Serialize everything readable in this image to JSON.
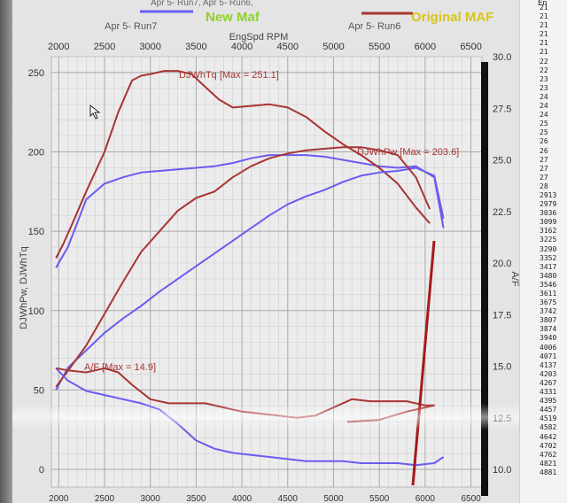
{
  "legend": {
    "run7": "Apr 5- Run7",
    "run6": "Apr 5- Run6",
    "top_clipped": "Apr 5- Run7, Apr 5- Run6,",
    "new_label": "New Maf",
    "orig_label": "Original MAF"
  },
  "colors": {
    "run7": "#6a5cf0",
    "run6": "#a83434",
    "new_label": "#8fd12a",
    "orig_label": "#d8c51a",
    "vertical_marker": "#a41a1a"
  },
  "axes": {
    "x_label": "EngSpd RPM",
    "left_label": "DJWhPw, DJWhTq",
    "right_label": "A/F",
    "x_ticks": [
      "2000",
      "2500",
      "3000",
      "3500",
      "4000",
      "4500",
      "5000",
      "5500",
      "6000",
      "6500"
    ],
    "left_ticks": [
      "0",
      "50",
      "100",
      "150",
      "200",
      "250"
    ],
    "right_ticks": [
      "10.0",
      "12.5",
      "15.0",
      "17.5",
      "20.0",
      "22.5",
      "25.0",
      "27.5",
      "30.0"
    ]
  },
  "annotations": {
    "tq_max": "DJWhTq [Max = 251.1]",
    "pw_max": "DJWhPw [Max = 203.6]",
    "af_max": "A/F  [Max = 14.9]"
  },
  "side_list": {
    "header": "En",
    "values": [
      "21",
      "21",
      "21",
      "21",
      "21",
      "21",
      "22",
      "22",
      "23",
      "23",
      "24",
      "24",
      "24",
      "25",
      "25",
      "26",
      "26",
      "27",
      "27",
      "27",
      "28",
      "2913",
      "2979",
      "3036",
      "3099",
      "3162",
      "3225",
      "3290",
      "3352",
      "3417",
      "3480",
      "3546",
      "3611",
      "3675",
      "3742",
      "3807",
      "3874",
      "3940",
      "4006",
      "4071",
      "4137",
      "4203",
      "4267",
      "4331",
      "4395",
      "4457",
      "4519",
      "4582",
      "4642",
      "4702",
      "4762",
      "4821",
      "4881"
    ]
  },
  "chart_data": {
    "type": "line",
    "xlabel": "EngSpd RPM",
    "xlim": [
      1920,
      6620
    ],
    "ylim_left": [
      0,
      260
    ],
    "ylim_right": [
      10.0,
      30.0
    ],
    "series": [
      {
        "name": "Apr 5- Run7",
        "axis": "left",
        "x": [
          1970,
          2050,
          2100,
          2200,
          2300,
          2500,
          2700,
          2900,
          3100,
          3300,
          3500,
          3700,
          3900,
          4100,
          4300,
          4500,
          4700,
          4900,
          5100,
          5300,
          5500,
          5700,
          5900,
          6100,
          6200
        ],
        "values": [
          127,
          135,
          140,
          155,
          170,
          180,
          184,
          187,
          188,
          189,
          190,
          191,
          193,
          196,
          198,
          198,
          198,
          197,
          195,
          193,
          191,
          190,
          191,
          184,
          152
        ]
      },
      {
        "name": "Apr 5- Run6",
        "axis": "left",
        "x": [
          1970,
          2050,
          2150,
          2300,
          2500,
          2650,
          2800,
          2900,
          3000,
          3150,
          3300,
          3450,
          3600,
          3750,
          3900,
          4100,
          4300,
          4500,
          4700,
          4900,
          5100,
          5300,
          5500,
          5700,
          5900,
          6050
        ],
        "values": [
          133,
          142,
          155,
          175,
          200,
          225,
          245,
          248,
          249,
          251,
          251,
          249,
          241,
          233,
          228,
          229,
          230,
          228,
          222,
          213,
          205,
          198,
          190,
          180,
          165,
          155
        ]
      },
      {
        "name": "Apr 5- Run7 DJWhPw",
        "axis": "left",
        "x": [
          1970,
          2100,
          2300,
          2500,
          2700,
          2900,
          3100,
          3300,
          3500,
          3700,
          3900,
          4100,
          4300,
          4500,
          4700,
          4900,
          5100,
          5300,
          5500,
          5700,
          5900,
          6100,
          6200
        ],
        "values": [
          50,
          64,
          75,
          86,
          95,
          103,
          112,
          120,
          128,
          136,
          144,
          152,
          160,
          167,
          172,
          176,
          181,
          185,
          187,
          188,
          190,
          185,
          158
        ]
      },
      {
        "name": "Apr 5- Run6 DJWhPw",
        "axis": "left",
        "x": [
          1970,
          2100,
          2300,
          2500,
          2700,
          2900,
          3100,
          3300,
          3500,
          3700,
          3900,
          4100,
          4300,
          4500,
          4700,
          4900,
          5100,
          5300,
          5500,
          5700,
          5900,
          6050
        ],
        "values": [
          52,
          62,
          78,
          98,
          118,
          137,
          150,
          163,
          171,
          175,
          184,
          191,
          196,
          199,
          201,
          202,
          203,
          203,
          201,
          198,
          184,
          164
        ]
      },
      {
        "name": "Apr 5- Run7 A/F",
        "axis": "right",
        "x": [
          1970,
          2100,
          2300,
          2500,
          2700,
          2900,
          3100,
          3300,
          3500,
          3700,
          3900,
          4100,
          4300,
          4500,
          4700,
          4900,
          5100,
          5300,
          5500,
          5700,
          5900,
          6100,
          6200
        ],
        "values": [
          14.9,
          14.3,
          13.8,
          13.6,
          13.4,
          13.2,
          12.9,
          12.2,
          11.4,
          11.0,
          10.8,
          10.7,
          10.6,
          10.5,
          10.4,
          10.4,
          10.4,
          10.3,
          10.3,
          10.3,
          10.2,
          10.3,
          10.6
        ]
      },
      {
        "name": "Apr 5- Run6 A/F",
        "axis": "right",
        "x": [
          1970,
          2100,
          2300,
          2500,
          2650,
          2800,
          3000,
          3200,
          3400,
          3600,
          3800,
          4000,
          4200,
          4400,
          4600,
          4800,
          5000,
          5200,
          5400,
          5600,
          5800,
          6000,
          6100,
          5800,
          5500,
          5150
        ],
        "values": [
          14.9,
          14.8,
          14.7,
          14.9,
          14.7,
          14.1,
          13.4,
          13.2,
          13.2,
          13.2,
          13.0,
          12.8,
          12.7,
          12.6,
          12.5,
          12.6,
          13.0,
          13.4,
          13.3,
          13.3,
          13.3,
          13.1,
          13.1,
          12.8,
          12.4,
          12.3
        ]
      }
    ]
  }
}
